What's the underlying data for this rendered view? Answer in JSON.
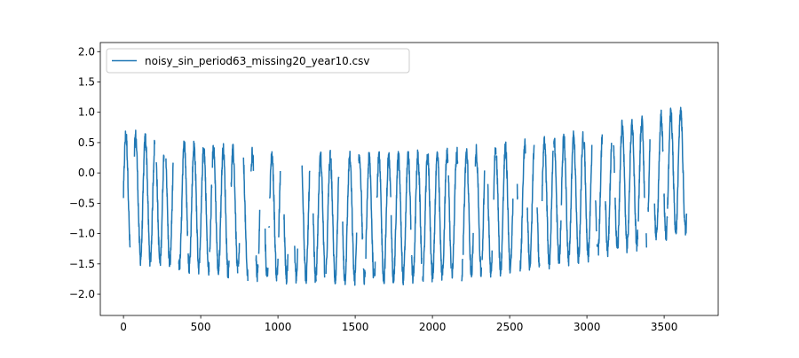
{
  "chart_data": {
    "type": "line",
    "title": "",
    "xlabel": "",
    "ylabel": "",
    "xlim": [
      -150,
      3850
    ],
    "ylim": [
      -2.35,
      2.15
    ],
    "xticks": [
      0,
      500,
      1000,
      1500,
      2000,
      2500,
      3000,
      3500
    ],
    "yticks": [
      -2.0,
      -1.5,
      -1.0,
      -0.5,
      0.0,
      0.5,
      1.0,
      1.5,
      2.0
    ],
    "grid": false,
    "legend": "top-left",
    "colors": {
      "series": "#1f77b4"
    },
    "series": [
      {
        "name": "noisy_sin_period63_missing20_year10.csv",
        "generator": {
          "n": 3650,
          "period": 63,
          "amplitude": 1.0,
          "trend_center_x": 1500,
          "trend_min": -0.75,
          "trend_curvature": 1.75e-07,
          "noise_amplitude": 0.12,
          "missing_fraction": 0.2
        }
      }
    ]
  }
}
